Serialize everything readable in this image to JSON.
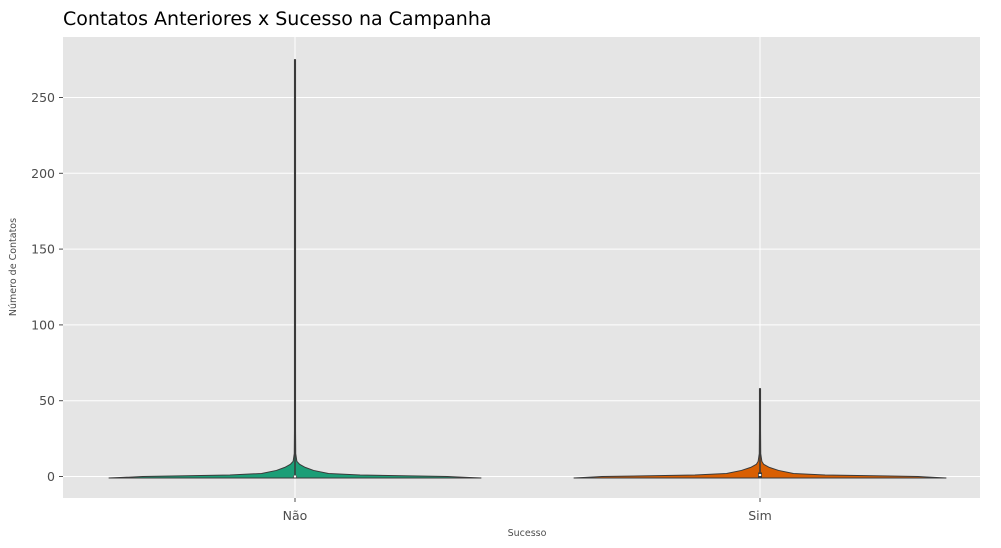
{
  "chart_data": {
    "type": "violin",
    "title": "Contatos Anteriores x Sucesso na Campanha",
    "xlabel": "Sucesso",
    "ylabel": "Número de Contatos",
    "categories": [
      "Não",
      "Sim"
    ],
    "ylim": [
      -15,
      285
    ],
    "yticks": [
      "0",
      "50",
      "100",
      "150",
      "200",
      "250"
    ],
    "grid": true,
    "legend": "none",
    "series": [
      {
        "category": "Não",
        "color": "#1b9e77",
        "min": -1,
        "max": 275,
        "median": 0,
        "q1": 0,
        "q3": 0,
        "density": [
          [
            -1,
            1.0
          ],
          [
            0,
            0.82
          ],
          [
            1,
            0.35
          ],
          [
            2,
            0.18
          ],
          [
            4,
            0.1
          ],
          [
            6,
            0.055
          ],
          [
            8,
            0.025
          ],
          [
            10,
            0.01
          ],
          [
            15,
            0.004
          ],
          [
            30,
            0.003
          ],
          [
            275,
            0.003
          ]
        ]
      },
      {
        "category": "Sim",
        "color": "#d95f02",
        "min": -1,
        "max": 58,
        "median": 1,
        "q1": 0,
        "q3": 2,
        "density": [
          [
            -1,
            1.0
          ],
          [
            0,
            0.85
          ],
          [
            1,
            0.35
          ],
          [
            2,
            0.18
          ],
          [
            4,
            0.1
          ],
          [
            6,
            0.05
          ],
          [
            8,
            0.02
          ],
          [
            10,
            0.01
          ],
          [
            15,
            0.004
          ],
          [
            30,
            0.003
          ],
          [
            58,
            0.003
          ]
        ]
      }
    ]
  }
}
